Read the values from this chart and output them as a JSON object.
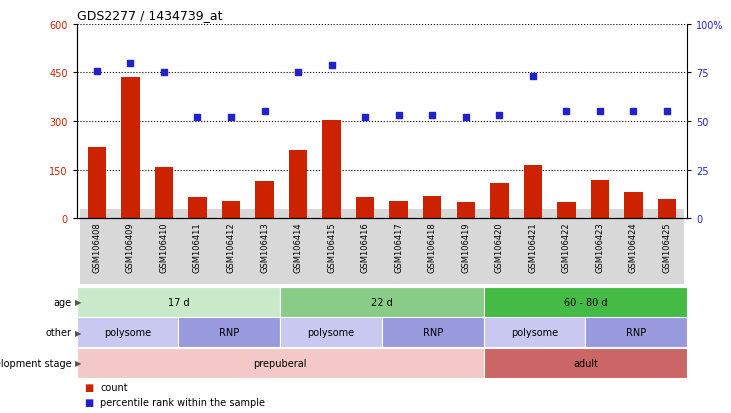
{
  "title": "GDS2277 / 1434739_at",
  "samples": [
    "GSM106408",
    "GSM106409",
    "GSM106410",
    "GSM106411",
    "GSM106412",
    "GSM106413",
    "GSM106414",
    "GSM106415",
    "GSM106416",
    "GSM106417",
    "GSM106418",
    "GSM106419",
    "GSM106420",
    "GSM106421",
    "GSM106422",
    "GSM106423",
    "GSM106424",
    "GSM106425"
  ],
  "counts": [
    220,
    435,
    160,
    65,
    55,
    115,
    210,
    305,
    65,
    55,
    70,
    50,
    110,
    165,
    50,
    120,
    80,
    60
  ],
  "percentiles": [
    76,
    80,
    75,
    52,
    52,
    55,
    75,
    79,
    52,
    53,
    53,
    52,
    53,
    73,
    55,
    55,
    55,
    55
  ],
  "bar_color": "#cc2200",
  "dot_color": "#2222cc",
  "left_ylim": [
    0,
    600
  ],
  "left_yticks": [
    0,
    150,
    300,
    450,
    600
  ],
  "right_ylim": [
    0,
    100
  ],
  "right_yticks": [
    0,
    25,
    50,
    75,
    100
  ],
  "age_groups": [
    {
      "label": "17 d",
      "start": 0,
      "end": 6,
      "color": "#c8eac8"
    },
    {
      "label": "22 d",
      "start": 6,
      "end": 12,
      "color": "#88cc88"
    },
    {
      "label": "60 - 80 d",
      "start": 12,
      "end": 18,
      "color": "#44bb44"
    }
  ],
  "other_groups": [
    {
      "label": "polysome",
      "start": 0,
      "end": 3,
      "color": "#c8c8f0"
    },
    {
      "label": "RNP",
      "start": 3,
      "end": 6,
      "color": "#9999dd"
    },
    {
      "label": "polysome",
      "start": 6,
      "end": 9,
      "color": "#c8c8f0"
    },
    {
      "label": "RNP",
      "start": 9,
      "end": 12,
      "color": "#9999dd"
    },
    {
      "label": "polysome",
      "start": 12,
      "end": 15,
      "color": "#c8c8f0"
    },
    {
      "label": "RNP",
      "start": 15,
      "end": 18,
      "color": "#9999dd"
    }
  ],
  "dev_groups": [
    {
      "label": "prepuberal",
      "start": 0,
      "end": 12,
      "color": "#f5c8c8"
    },
    {
      "label": "adult",
      "start": 12,
      "end": 18,
      "color": "#cc6666"
    }
  ],
  "row_labels": [
    "age",
    "other",
    "development stage"
  ],
  "legend_count_label": "count",
  "legend_pct_label": "percentile rank within the sample",
  "xtick_bg": "#d8d8d8"
}
